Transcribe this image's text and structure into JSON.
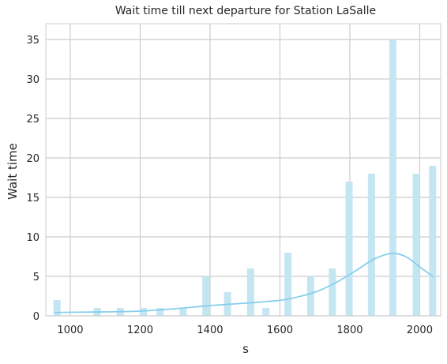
{
  "chart_data": {
    "type": "bar",
    "title": "Wait time till next departure for Station LaSalle",
    "xlabel": "s",
    "ylabel": "Wait time",
    "xlim": [
      930,
      2060
    ],
    "ylim": [
      0,
      37
    ],
    "xticks": [
      1000,
      1200,
      1400,
      1600,
      1800,
      2000
    ],
    "yticks": [
      0,
      5,
      10,
      15,
      20,
      25,
      30,
      35
    ],
    "grid": true,
    "bar_color": "#c4e6f2",
    "kde_color": "#87ceeb",
    "bars": [
      {
        "x": 962,
        "value": 2
      },
      {
        "x": 1077,
        "value": 1
      },
      {
        "x": 1143,
        "value": 1
      },
      {
        "x": 1209,
        "value": 1
      },
      {
        "x": 1257,
        "value": 1
      },
      {
        "x": 1323,
        "value": 1
      },
      {
        "x": 1388,
        "value": 5
      },
      {
        "x": 1450,
        "value": 3
      },
      {
        "x": 1516,
        "value": 6
      },
      {
        "x": 1560,
        "value": 1
      },
      {
        "x": 1623,
        "value": 8
      },
      {
        "x": 1688,
        "value": 5
      },
      {
        "x": 1750,
        "value": 6
      },
      {
        "x": 1798,
        "value": 17
      },
      {
        "x": 1862,
        "value": 18
      },
      {
        "x": 1923,
        "value": 35
      },
      {
        "x": 1990,
        "value": 18
      },
      {
        "x": 2037,
        "value": 19
      }
    ],
    "kde": [
      [
        955,
        0.4
      ],
      [
        1000,
        0.45
      ],
      [
        1100,
        0.5
      ],
      [
        1200,
        0.6
      ],
      [
        1300,
        0.9
      ],
      [
        1400,
        1.3
      ],
      [
        1500,
        1.6
      ],
      [
        1560,
        1.8
      ],
      [
        1620,
        2.1
      ],
      [
        1700,
        3.0
      ],
      [
        1760,
        4.2
      ],
      [
        1820,
        5.8
      ],
      [
        1870,
        7.2
      ],
      [
        1920,
        7.9
      ],
      [
        1960,
        7.5
      ],
      [
        2000,
        6.2
      ],
      [
        2040,
        4.9
      ]
    ]
  }
}
